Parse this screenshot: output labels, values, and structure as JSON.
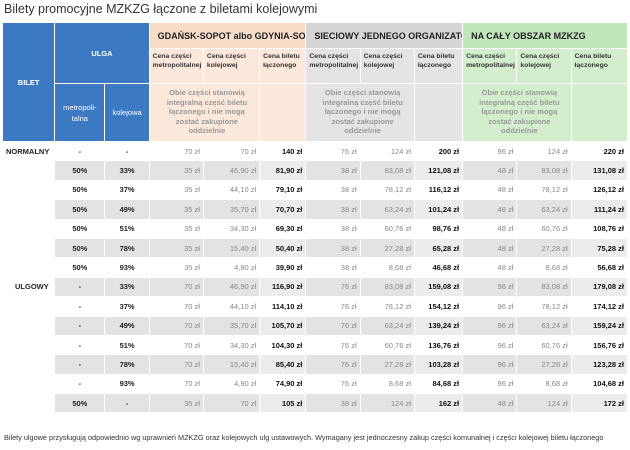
{
  "title": "Bilety promocyjne MZKZG łączone z biletami kolejowymi",
  "header": {
    "bilet": "BILET",
    "ulga": "ULGA",
    "ulga_metro": "metropoli-talna",
    "ulga_kolej": "kolejowa",
    "groups": [
      {
        "name": "GDAŃSK-SOPOT albo GDYNIA-SOPOT"
      },
      {
        "name": "SIECIOWY JEDNEGO ORGANIZATORA"
      },
      {
        "name": "NA CAŁY OBSZAR MZKZG"
      }
    ],
    "col_metro": "Cena części metropolitalnej",
    "col_kolej": "Cena części kolejowej",
    "col_total": "Cena biletu łączonego",
    "note": "Obie części stanowią integralną część biletu łączonego i nie mogą zostać zakupione oddzielnie"
  },
  "normalny": {
    "label": "NORMALNY",
    "metro": "-",
    "kolej": "-",
    "cells": [
      "70 zł",
      "70 zł",
      "140 zł",
      "76 zł",
      "124 zł",
      "200 zł",
      "96 zł",
      "124 zł",
      "220 zł"
    ]
  },
  "ulgowy_label": "ULGOWY",
  "rows": [
    {
      "metro": "50%",
      "kolej": "33%",
      "cells": [
        "35 zł",
        "46,90 zł",
        "81,90 zł",
        "38 zł",
        "83,08 zł",
        "121,08 zł",
        "48 zł",
        "83,08 zł",
        "131,08 zł"
      ]
    },
    {
      "metro": "50%",
      "kolej": "37%",
      "cells": [
        "35 zł",
        "44,10 zł",
        "79,10 zł",
        "38 zł",
        "78,12 zł",
        "116,12 zł",
        "48 zł",
        "78,12 zł",
        "126,12 zł"
      ]
    },
    {
      "metro": "50%",
      "kolej": "49%",
      "cells": [
        "35 zł",
        "35,70 zł",
        "70,70 zł",
        "38 zł",
        "63,24 zł",
        "101,24 zł",
        "48 zł",
        "63,24 zł",
        "111,24 zł"
      ]
    },
    {
      "metro": "50%",
      "kolej": "51%",
      "cells": [
        "35 zł",
        "34,30 zł",
        "69,30 zł",
        "38 zł",
        "60,76 zł",
        "98,76 zł",
        "48 zł",
        "60,76 zł",
        "108,76 zł"
      ]
    },
    {
      "metro": "50%",
      "kolej": "78%",
      "cells": [
        "35 zł",
        "15,40 zł",
        "50,40 zł",
        "38 zł",
        "27,28 zł",
        "65,28 zł",
        "48 zł",
        "27,28 zł",
        "75,28 zł"
      ]
    },
    {
      "metro": "50%",
      "kolej": "93%",
      "cells": [
        "35 zł",
        "4,90 zł",
        "39,90 zł",
        "38 zł",
        "8,68 zł",
        "46,68 zł",
        "48 zł",
        "8,68 zł",
        "56,68 zł"
      ]
    },
    {
      "metro": "-",
      "kolej": "33%",
      "cells": [
        "70 zł",
        "46,90 zł",
        "116,90 zł",
        "76 zł",
        "83,08 zł",
        "159,08 zł",
        "96 zł",
        "83,08 zł",
        "179,08 zł"
      ]
    },
    {
      "metro": "-",
      "kolej": "37%",
      "cells": [
        "70 zł",
        "44,10 zł",
        "114,10 zł",
        "76 zł",
        "78,12 zł",
        "154,12 zł",
        "96 zł",
        "78,12 zł",
        "174,12 zł"
      ]
    },
    {
      "metro": "-",
      "kolej": "49%",
      "cells": [
        "70 zł",
        "35,70 zł",
        "105,70 zł",
        "76 zł",
        "63,24 zł",
        "139,24 zł",
        "96 zł",
        "63,24 zł",
        "159,24 zł"
      ]
    },
    {
      "metro": "-",
      "kolej": "51%",
      "cells": [
        "70 zł",
        "34,30 zł",
        "104,30 zł",
        "76 zł",
        "60,76 zł",
        "136,76 zł",
        "96 zł",
        "60,76 zł",
        "156,76 zł"
      ]
    },
    {
      "metro": "-",
      "kolej": "78%",
      "cells": [
        "70 zł",
        "15,40 zł",
        "85,40 zł",
        "76 zł",
        "27,28 zł",
        "103,28 zł",
        "96 zł",
        "27,28 zł",
        "123,28 zł"
      ]
    },
    {
      "metro": "-",
      "kolej": "93%",
      "cells": [
        "70 zł",
        "4,90 zł",
        "74,90 zł",
        "76 zł",
        "8,68 zł",
        "84,68 zł",
        "96 zł",
        "8,68 zł",
        "104,68 zł"
      ]
    },
    {
      "metro": "50%",
      "kolej": "-",
      "cells": [
        "35 zł",
        "70 zł",
        "105 zł",
        "38 zł",
        "124 zł",
        "162 zł",
        "48 zł",
        "124 zł",
        "172 zł"
      ]
    }
  ],
  "footer": "Bilety ulgowe przysługują odpowiednio wg uprawnień MZKZG oraz kolejowych ulg ustawowych. Wymagany jest jednoczesny zakup części komunalnej i części kolejowej biletu łączonego"
}
